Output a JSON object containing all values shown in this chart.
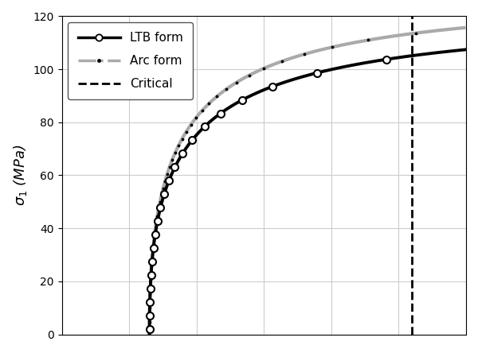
{
  "title": "",
  "ylabel": "$\\sigma_1$ (MPa)",
  "xlabel": "",
  "ylim": [
    0,
    120
  ],
  "xlim": [
    0,
    6
  ],
  "yticks": [
    0,
    20,
    40,
    60,
    80,
    100,
    120
  ],
  "xticks": [
    0,
    1,
    2,
    3,
    4,
    5,
    6
  ],
  "critical_x": 5.2,
  "ltb_color": "#000000",
  "arc_color": "#aaaaaa",
  "critical_color": "#000000",
  "legend_labels": [
    "LTB form",
    "Arc form",
    "Critical"
  ],
  "figsize": [
    6.0,
    4.44
  ],
  "dpi": 100,
  "ltb_lw": 2.5,
  "arc_lw": 2.5
}
